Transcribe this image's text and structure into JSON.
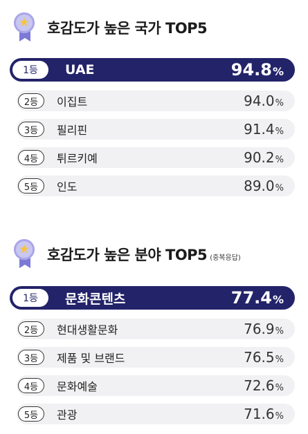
{
  "sections": [
    {
      "title": "호감도가 높은 국가 TOP5",
      "subtitle": "",
      "items": [
        {
          "rank": "1등",
          "label": "UAE",
          "value": "94.8",
          "unit": "%"
        },
        {
          "rank": "2등",
          "label": "이집트",
          "value": "94.0",
          "unit": "%"
        },
        {
          "rank": "3등",
          "label": "필리핀",
          "value": "91.4",
          "unit": "%"
        },
        {
          "rank": "4등",
          "label": "튀르키예",
          "value": "90.2",
          "unit": "%"
        },
        {
          "rank": "5등",
          "label": "인도",
          "value": "89.0",
          "unit": "%"
        }
      ]
    },
    {
      "title": "호감도가 높은 분야 TOP5",
      "subtitle": "(중복응답)",
      "items": [
        {
          "rank": "1등",
          "label": "문화콘텐츠",
          "value": "77.4",
          "unit": "%"
        },
        {
          "rank": "2등",
          "label": "현대생활문화",
          "value": "76.9",
          "unit": "%"
        },
        {
          "rank": "3등",
          "label": "제품 및 브랜드",
          "value": "76.5",
          "unit": "%"
        },
        {
          "rank": "4등",
          "label": "문화예술",
          "value": "72.6",
          "unit": "%"
        },
        {
          "rank": "5등",
          "label": "관광",
          "value": "71.6",
          "unit": "%"
        }
      ]
    }
  ],
  "colors": {
    "accent": "#23236a",
    "row_bg": "#f1f1f3",
    "medal": "#c9c7f0",
    "star": "#f7c43a"
  },
  "icons": {
    "medal": "medal-star-icon"
  }
}
